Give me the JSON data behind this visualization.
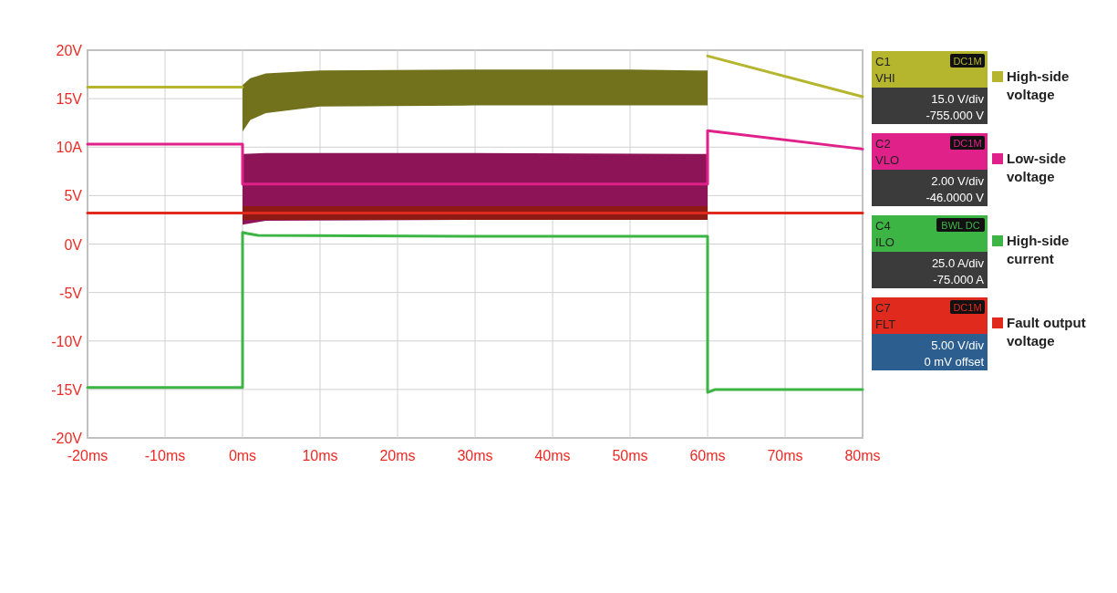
{
  "chart_data": {
    "type": "line",
    "xlim": [
      -20,
      80
    ],
    "xticks": [
      {
        "value": -20,
        "label": "-20ms"
      },
      {
        "value": -10,
        "label": "-10ms"
      },
      {
        "value": 0,
        "label": "0ms"
      },
      {
        "value": 10,
        "label": "10ms"
      },
      {
        "value": 20,
        "label": "20ms"
      },
      {
        "value": 30,
        "label": "30ms"
      },
      {
        "value": 40,
        "label": "40ms"
      },
      {
        "value": 50,
        "label": "50ms"
      },
      {
        "value": 60,
        "label": "60ms"
      },
      {
        "value": 70,
        "label": "70ms"
      },
      {
        "value": 80,
        "label": "80ms"
      }
    ],
    "ylim": [
      -20,
      20
    ],
    "yticks": [
      {
        "value": -20,
        "label": "-20V"
      },
      {
        "value": -15,
        "label": "-15V"
      },
      {
        "value": -10,
        "label": "-10V"
      },
      {
        "value": -5,
        "label": "-5V"
      },
      {
        "value": 0,
        "label": "0V"
      },
      {
        "value": 5,
        "label": "5V"
      },
      {
        "value": 10,
        "label": "10A"
      },
      {
        "value": 15,
        "label": "15V"
      },
      {
        "value": 20,
        "label": "20V"
      }
    ],
    "grid": true,
    "legend": "right",
    "series": [
      {
        "name": "High-side voltage",
        "color": "#b5b52e",
        "x": [
          -20,
          0,
          0,
          1,
          3,
          10,
          30,
          50,
          60,
          60,
          80
        ],
        "values": [
          16.2,
          16.2,
          null,
          null,
          null,
          null,
          null,
          null,
          null,
          19.4,
          15.2
        ],
        "lower": [
          null,
          null,
          11.6,
          12.8,
          13.5,
          14.2,
          14.3,
          14.3,
          14.3,
          null,
          null
        ],
        "upper": [
          null,
          null,
          16.4,
          17.1,
          17.6,
          17.9,
          18,
          18,
          17.9,
          null,
          null
        ]
      },
      {
        "name": "Low-side voltage",
        "color": "#e0218a",
        "x": [
          -20,
          0,
          0,
          3,
          30,
          60,
          60,
          80
        ],
        "values": [
          10.3,
          10.3,
          6.2,
          6.2,
          6.2,
          6.2,
          11.7,
          9.8
        ],
        "lower": [
          null,
          null,
          2,
          2.4,
          2.5,
          2.5,
          null,
          null
        ],
        "upper": [
          null,
          null,
          9.3,
          9.4,
          9.4,
          9.3,
          null,
          null
        ]
      },
      {
        "name": "High-side current",
        "color": "#3cb544",
        "x": [
          -20,
          0,
          0,
          0.5,
          2,
          30,
          60,
          60,
          61,
          80
        ],
        "values": [
          -14.8,
          -14.8,
          1.2,
          1.1,
          0.9,
          0.8,
          0.8,
          -15.3,
          -15,
          -15
        ]
      },
      {
        "name": "Fault output voltage",
        "color": "#e02a1e",
        "x": [
          -20,
          0,
          0,
          30,
          60,
          60,
          80
        ],
        "values": [
          3.2,
          3.2,
          3.2,
          3.2,
          3.2,
          3.2,
          3.2
        ],
        "lower": [
          null,
          null,
          2.5,
          2.5,
          2.5,
          null,
          null
        ],
        "upper": [
          null,
          null,
          3.9,
          3.9,
          3.9,
          null,
          null
        ]
      }
    ],
    "annotations": [
      "C1",
      "VHI",
      "DC1M",
      "15.0 V/div",
      "-755.000 V",
      "C2",
      "VLO",
      "DC1M",
      "2.00 V/div",
      "-46.0000 V",
      "C4",
      "ILO",
      "BWL DC",
      "25.0 A/div",
      "-75.000 A",
      "C7",
      "FLT",
      "DC1M",
      "5.00 V/div",
      "0 mV offset"
    ]
  }
}
